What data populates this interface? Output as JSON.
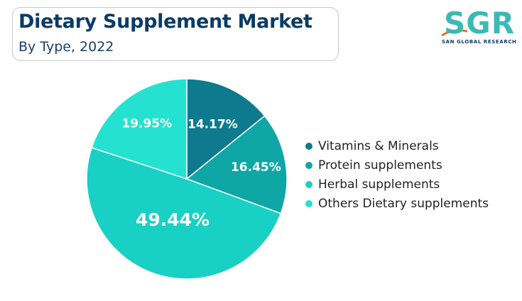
{
  "header": {
    "title": "Dietary Supplement Market",
    "subtitle": "By Type, 2022"
  },
  "logo": {
    "mark": "SGR",
    "tagline": "SAN GLOBAL RESEARCH"
  },
  "chart_data": {
    "type": "pie",
    "title": "Dietary Supplement Market",
    "subtitle": "By Type, 2022",
    "start_angle_deg": 0,
    "direction": "clockwise",
    "legend_placement": "right",
    "slices": [
      {
        "name": "Vitamins & Minerals",
        "value": 14.17,
        "label": "14.17%",
        "color": "#0e7a8e"
      },
      {
        "name": "Protein supplements",
        "value": 16.45,
        "label": "16.45%",
        "color": "#0fa6a6"
      },
      {
        "name": "Herbal supplements",
        "value": 49.44,
        "label": "49.44%",
        "color": "#19d0c4"
      },
      {
        "name": "Others Dietary supplements",
        "value": 19.95,
        "label": "19.95%",
        "color": "#24e2cf"
      }
    ]
  }
}
